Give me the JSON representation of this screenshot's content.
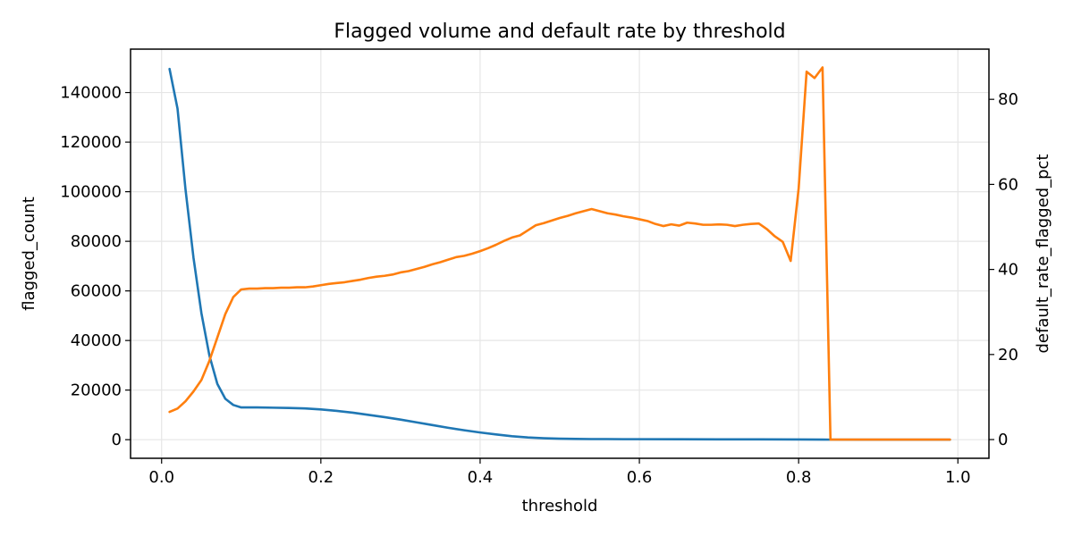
{
  "chart_data": {
    "type": "line",
    "title": "Flagged volume and default rate by threshold",
    "xlabel": "threshold",
    "ylabel_left": "flagged_count",
    "ylabel_right": "default_rate_flagged_pct",
    "xlim": [
      -0.039,
      1.039
    ],
    "ylim_left": [
      -7500,
      157500
    ],
    "ylim_right": [
      -4.4,
      91.8
    ],
    "x_ticks": [
      0.0,
      0.2,
      0.4,
      0.6,
      0.8,
      1.0
    ],
    "x_tick_labels": [
      "0.0",
      "0.2",
      "0.4",
      "0.6",
      "0.8",
      "1.0"
    ],
    "y_left_ticks": [
      0,
      20000,
      40000,
      60000,
      80000,
      100000,
      120000,
      140000
    ],
    "y_left_tick_labels": [
      "0",
      "20000",
      "40000",
      "60000",
      "80000",
      "100000",
      "120000",
      "140000"
    ],
    "y_right_ticks": [
      0,
      20,
      40,
      60,
      80
    ],
    "y_right_tick_labels": [
      "0",
      "20",
      "40",
      "60",
      "80"
    ],
    "grid": true,
    "series": [
      {
        "axis": "left",
        "color": "#1f77b4",
        "x": [
          0.01,
          0.02,
          0.03,
          0.04,
          0.05,
          0.06,
          0.07,
          0.08,
          0.09,
          0.1,
          0.12,
          0.14,
          0.16,
          0.18,
          0.2,
          0.22,
          0.24,
          0.26,
          0.28,
          0.3,
          0.32,
          0.34,
          0.36,
          0.38,
          0.4,
          0.42,
          0.44,
          0.46,
          0.48,
          0.5,
          0.52,
          0.54,
          0.56,
          0.58,
          0.6,
          0.65,
          0.7,
          0.75,
          0.8,
          0.83,
          0.84,
          0.88,
          0.92,
          0.96,
          0.99
        ],
        "y": [
          149500,
          133500,
          101000,
          73500,
          51000,
          34000,
          22500,
          16500,
          14000,
          13000,
          13000,
          12900,
          12800,
          12600,
          12200,
          11600,
          10900,
          10000,
          9100,
          8100,
          7000,
          5900,
          4800,
          3800,
          2900,
          2100,
          1400,
          900,
          600,
          400,
          300,
          250,
          250,
          200,
          200,
          180,
          150,
          130,
          100,
          50,
          20,
          10,
          5,
          0,
          0
        ]
      },
      {
        "axis": "right",
        "color": "#ff7f0e",
        "x": [
          0.01,
          0.02,
          0.03,
          0.04,
          0.05,
          0.06,
          0.07,
          0.08,
          0.09,
          0.1,
          0.11,
          0.12,
          0.13,
          0.14,
          0.15,
          0.16,
          0.17,
          0.18,
          0.19,
          0.2,
          0.21,
          0.22,
          0.23,
          0.24,
          0.25,
          0.26,
          0.27,
          0.28,
          0.29,
          0.3,
          0.31,
          0.32,
          0.33,
          0.34,
          0.35,
          0.36,
          0.37,
          0.38,
          0.39,
          0.4,
          0.41,
          0.42,
          0.43,
          0.44,
          0.45,
          0.46,
          0.47,
          0.48,
          0.49,
          0.5,
          0.51,
          0.52,
          0.53,
          0.54,
          0.55,
          0.56,
          0.57,
          0.58,
          0.59,
          0.6,
          0.61,
          0.62,
          0.63,
          0.64,
          0.65,
          0.66,
          0.67,
          0.68,
          0.69,
          0.7,
          0.71,
          0.72,
          0.73,
          0.74,
          0.75,
          0.76,
          0.77,
          0.78,
          0.79,
          0.8,
          0.81,
          0.82,
          0.83,
          0.84,
          0.85,
          0.86,
          0.87,
          0.88,
          0.89,
          0.9,
          0.91,
          0.92,
          0.93,
          0.94,
          0.95,
          0.96,
          0.97,
          0.98,
          0.99
        ],
        "y": [
          6.5,
          7.3,
          9.0,
          11.3,
          14.0,
          18.5,
          24.0,
          29.5,
          33.5,
          35.3,
          35.5,
          35.5,
          35.6,
          35.6,
          35.7,
          35.7,
          35.8,
          35.8,
          36.0,
          36.3,
          36.6,
          36.8,
          37.0,
          37.3,
          37.6,
          38.0,
          38.3,
          38.5,
          38.8,
          39.3,
          39.6,
          40.1,
          40.6,
          41.2,
          41.7,
          42.3,
          42.9,
          43.2,
          43.7,
          44.3,
          45.0,
          45.8,
          46.7,
          47.5,
          48.0,
          49.2,
          50.4,
          50.9,
          51.5,
          52.1,
          52.6,
          53.2,
          53.7,
          54.2,
          53.7,
          53.2,
          52.9,
          52.5,
          52.2,
          51.8,
          51.4,
          50.7,
          50.2,
          50.6,
          50.3,
          51.0,
          50.8,
          50.5,
          50.5,
          50.6,
          50.5,
          50.2,
          50.5,
          50.7,
          50.8,
          49.5,
          47.8,
          46.5,
          42.0,
          59.0,
          86.5,
          85.0,
          87.5,
          0,
          0,
          0,
          0,
          0,
          0,
          0,
          0,
          0,
          0,
          0,
          0,
          0,
          0,
          0,
          0
        ]
      }
    ]
  }
}
